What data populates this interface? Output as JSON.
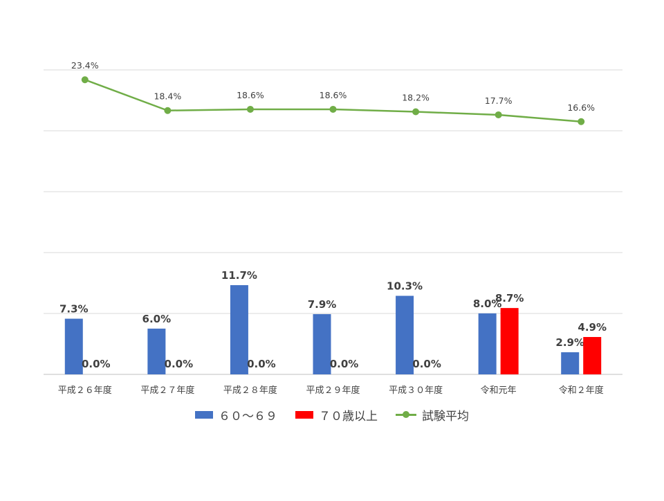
{
  "chart_data": {
    "type": "bar+line",
    "categories": [
      "平成２６年度",
      "平成２７年度",
      "平成２８年度",
      "平成２９年度",
      "平成３０年度",
      "令和元年",
      "令和２年度"
    ],
    "bar_series": [
      {
        "name": "６０～６９",
        "color": "#4472C4",
        "values": [
          7.3,
          6.0,
          11.7,
          7.9,
          10.3,
          8.0,
          2.9
        ],
        "labels": [
          "7.3%",
          "6.0%",
          "11.7%",
          "7.9%",
          "10.3%",
          "8.0%",
          "2.9%"
        ]
      },
      {
        "name": "７０歳以上",
        "color": "#FF0000",
        "values": [
          0.0,
          0.0,
          0.0,
          0.0,
          0.0,
          8.7,
          4.9
        ],
        "labels": [
          "0.0%",
          "0.0%",
          "0.0%",
          "0.0%",
          "0.0%",
          "8.7%",
          "4.9%"
        ]
      }
    ],
    "line_series": {
      "name": "試験平均",
      "color": "#70AD47",
      "values": [
        23.4,
        18.4,
        18.6,
        18.6,
        18.2,
        17.7,
        16.6
      ],
      "labels": [
        "23.4%",
        "18.4%",
        "18.6%",
        "18.6%",
        "18.2%",
        "17.7%",
        "16.6%"
      ]
    },
    "grid": true,
    "legend_position": "bottom"
  }
}
